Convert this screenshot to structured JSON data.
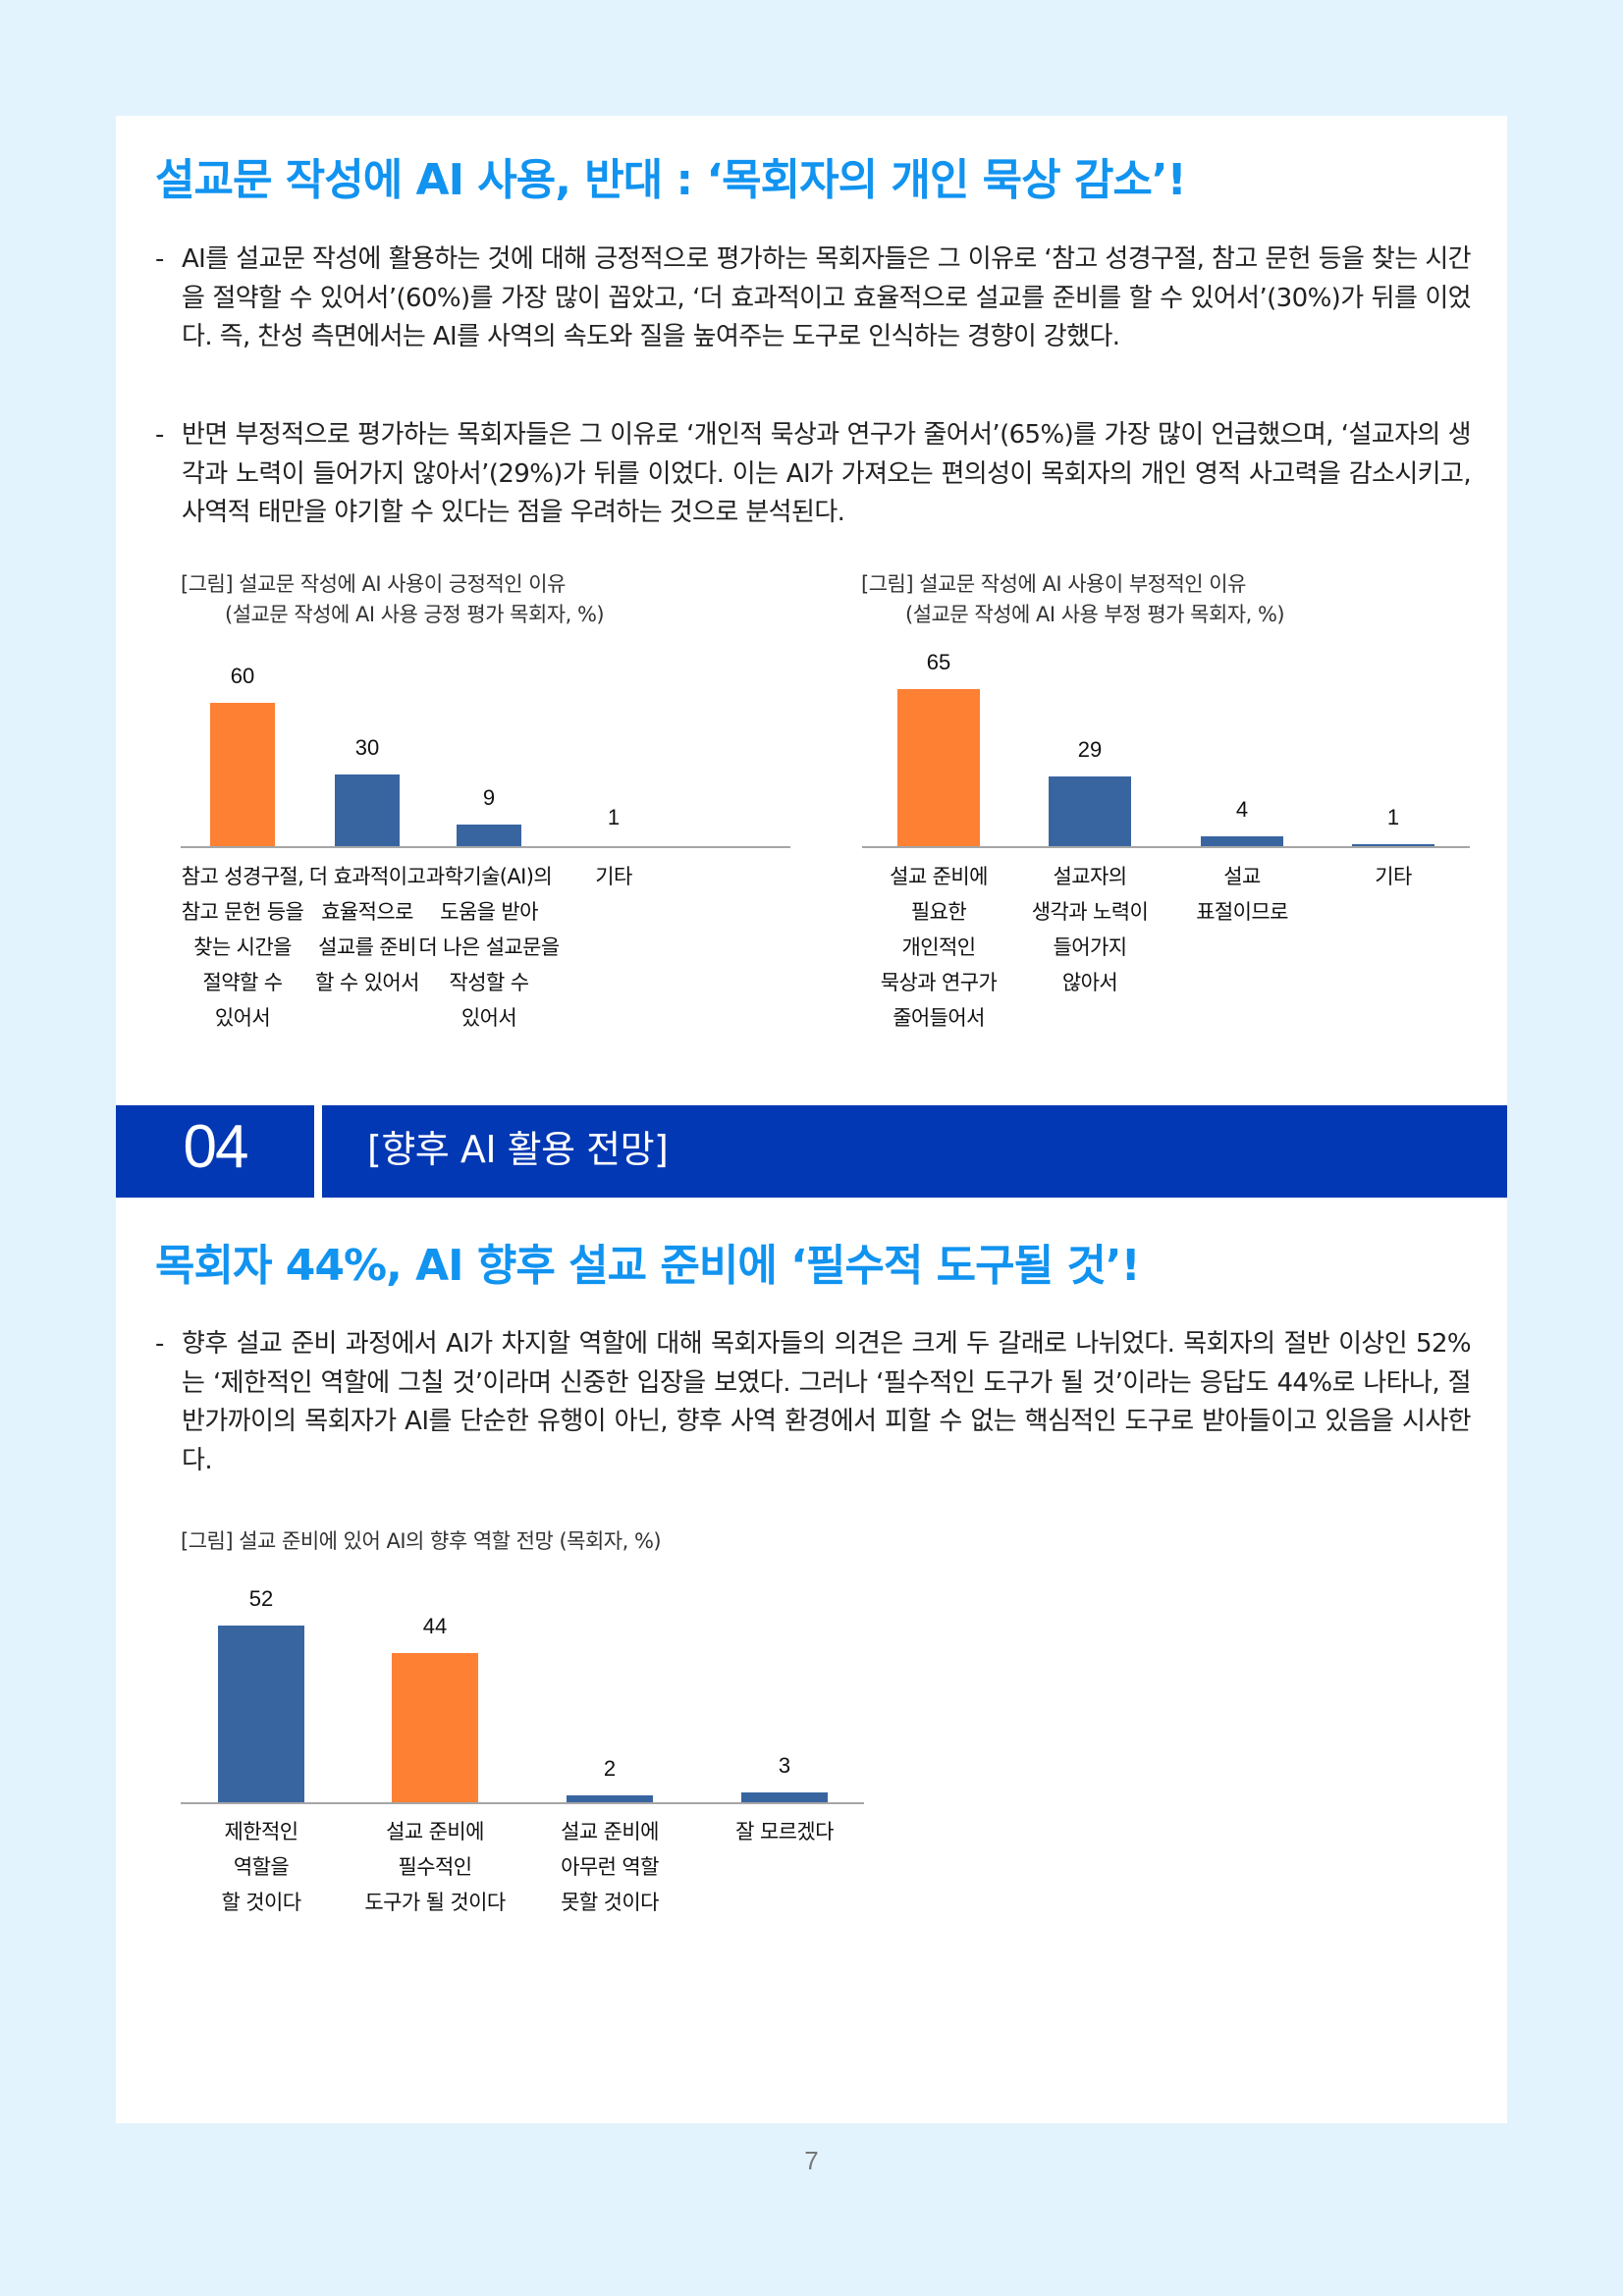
{
  "colors": {
    "page_bg": "#e3f3fd",
    "title": "#1193f0",
    "section_bar": "#0238b4",
    "bar_blue": "#3865a0",
    "bar_orange": "#fe8033",
    "axis": "#a6a6a6"
  },
  "section1": {
    "title": "설교문 작성에 AI 사용, 반대 : ‘목회자의 개인 묵상 감소’!",
    "bullets": [
      {
        "marker": "-",
        "text": "AI를 설교문 작성에 활용하는 것에 대해 긍정적으로 평가하는 목회자들은 그 이유로 ‘참고 성경구절, 참고 문헌 등을 찾는 시간을 절약할 수 있어서’(60%)를 가장 많이 꼽았고, ‘더 효과적이고 효율적으로 설교를 준비를 할 수 있어서’(30%)가 뒤를 이었다. 즉, 찬성 측면에서는 AI를 사역의 속도와 질을 높여주는 도구로 인식하는 경향이 강했다."
      },
      {
        "marker": "-",
        "text": "반면 부정적으로 평가하는 목회자들은 그 이유로 ‘개인적 묵상과 연구가 줄어서’(65%)를 가장 많이 언급했으며, ‘설교자의 생각과 노력이 들어가지 않아서’(29%)가 뒤를 이었다. 이는 AI가 가져오는 편의성이 목회자의 개인 영적 사고력을 감소시키고, 사역적 태만을 야기할 수 있다는 점을 우려하는 것으로 분석된다."
      }
    ]
  },
  "section_header": {
    "number": "04",
    "label": "[향후 AI 활용 전망]"
  },
  "section2": {
    "title": "목회자 44%, AI 향후 설교 준비에 ‘필수적 도구될 것’!",
    "bullets": [
      {
        "marker": "-",
        "text": "향후 설교 준비 과정에서 AI가 차지할 역할에 대해 목회자들의 의견은 크게 두 갈래로 나뉘었다. 목회자의 절반 이상인 52%는 ‘제한적인 역할에 그칠 것’이라며 신중한 입장을 보였다. 그러나 ‘필수적인 도구가 될 것’이라는 응답도 44%로 나타나, 절반가까이의 목회자가 AI를 단순한 유행이 아닌, 향후 사역 환경에서 피할 수 없는 핵심적인 도구로 받아들이고 있음을 시사한다."
      }
    ]
  },
  "chart_data": [
    {
      "type": "bar",
      "title": "[그림] 설교문 작성에 AI 사용이 긍정적인 이유",
      "subtitle": "(설교문 작성에 AI 사용 긍정 평가 목회자, %)",
      "categories": [
        "참고 성경구절,\n참고 문헌 등을\n찾는 시간을\n절약할 수\n있어서",
        "더 효과적이고\n효율적으로\n설교를 준비\n할 수 있어서",
        "과학기술(AI)의\n도움을 받아\n더 나은 설교문을\n작성할 수\n있어서",
        "기타"
      ],
      "values": [
        60,
        30,
        9,
        1
      ],
      "value_labels": [
        "60",
        "30",
        "9",
        "1"
      ],
      "highlight_index": 0,
      "xlabel": "",
      "ylabel": "%",
      "ylim": [
        0,
        65
      ],
      "grid": false,
      "legend": null
    },
    {
      "type": "bar",
      "title": "[그림] 설교문 작성에 AI 사용이 부정적인 이유",
      "subtitle": "(설교문 작성에 AI 사용 부정 평가 목회자, %)",
      "categories": [
        "설교 준비에\n필요한\n개인적인\n묵상과 연구가\n줄어들어서",
        "설교자의\n생각과 노력이\n들어가지\n않아서",
        "설교\n표절이므로",
        "기타"
      ],
      "values": [
        65,
        29,
        4,
        1
      ],
      "value_labels": [
        "65",
        "29",
        "4",
        "1"
      ],
      "highlight_index": 0,
      "xlabel": "",
      "ylabel": "%",
      "ylim": [
        0,
        70
      ],
      "grid": false,
      "legend": null
    },
    {
      "type": "bar",
      "title": "[그림] 설교 준비에 있어 AI의 향후 역할 전망 (목회자, %)",
      "categories": [
        "제한적인\n역할을\n할 것이다",
        "설교 준비에\n필수적인\n도구가 될 것이다",
        "설교 준비에\n아무런 역할\n못할 것이다",
        "잘 모르겠다"
      ],
      "values": [
        52,
        44,
        2,
        3
      ],
      "value_labels": [
        "52",
        "44",
        "2",
        "3"
      ],
      "highlight_index": 1,
      "xlabel": "",
      "ylabel": "%",
      "ylim": [
        0,
        55
      ],
      "grid": false,
      "legend": null
    }
  ],
  "page_number": "7"
}
